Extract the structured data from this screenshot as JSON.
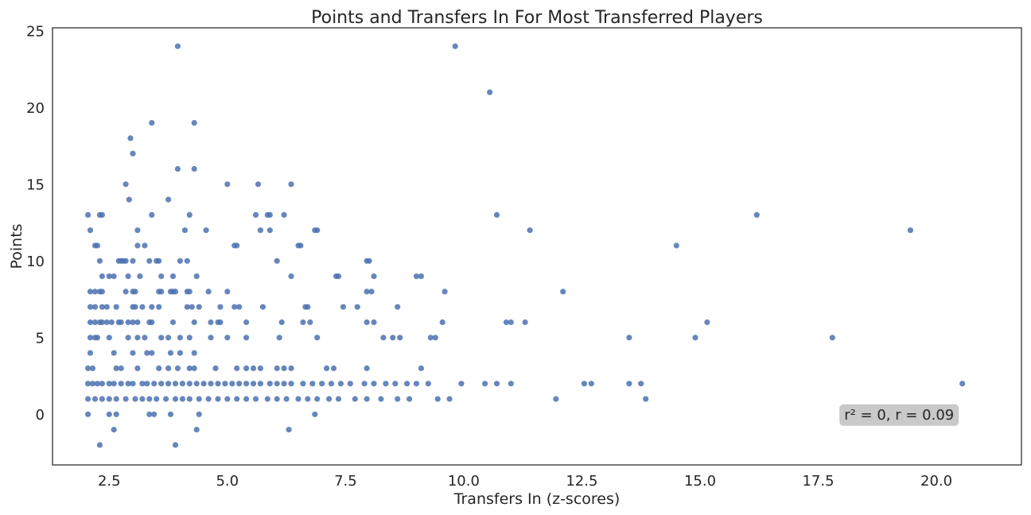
{
  "chart_data": {
    "type": "scatter",
    "title": "Points and Transfers In For Most Transferred Players",
    "xlabel": "Transfers In (z-scores)",
    "ylabel": "Points",
    "xlim": [
      1.3,
      21.8
    ],
    "ylim": [
      -3.3,
      25.2
    ],
    "xticks": [
      "2.5",
      "5.0",
      "7.5",
      "10.0",
      "12.5",
      "15.0",
      "17.5",
      "20.0"
    ],
    "yticks": [
      "0",
      "5",
      "10",
      "15",
      "20",
      "25"
    ],
    "grid": false,
    "point_color": "#4c72b0",
    "annotation": {
      "text": "r² = 0, r = 0.09",
      "x": 18.05,
      "y": 0
    },
    "points": [
      [
        3.95,
        24
      ],
      [
        9.82,
        24
      ],
      [
        10.55,
        21
      ],
      [
        2.95,
        18
      ],
      [
        3.0,
        17
      ],
      [
        3.4,
        19
      ],
      [
        4.3,
        19
      ],
      [
        3.95,
        16
      ],
      [
        4.3,
        16
      ],
      [
        2.85,
        15
      ],
      [
        2.92,
        14
      ],
      [
        3.75,
        14
      ],
      [
        5.0,
        15
      ],
      [
        5.65,
        15
      ],
      [
        6.35,
        15
      ],
      [
        2.05,
        13
      ],
      [
        2.3,
        13
      ],
      [
        2.35,
        13
      ],
      [
        3.4,
        13
      ],
      [
        4.2,
        13
      ],
      [
        5.6,
        13
      ],
      [
        5.85,
        13
      ],
      [
        5.9,
        13
      ],
      [
        6.2,
        13
      ],
      [
        10.7,
        13
      ],
      [
        16.2,
        13
      ],
      [
        2.1,
        12
      ],
      [
        3.1,
        12
      ],
      [
        4.1,
        12
      ],
      [
        4.55,
        12
      ],
      [
        5.7,
        12
      ],
      [
        5.9,
        12
      ],
      [
        6.85,
        12
      ],
      [
        6.9,
        12
      ],
      [
        11.4,
        12
      ],
      [
        19.45,
        12
      ],
      [
        2.2,
        11
      ],
      [
        2.25,
        11
      ],
      [
        3.1,
        11
      ],
      [
        3.25,
        11
      ],
      [
        5.15,
        11
      ],
      [
        5.2,
        11
      ],
      [
        6.5,
        11
      ],
      [
        6.55,
        11
      ],
      [
        14.5,
        11
      ],
      [
        2.3,
        10
      ],
      [
        2.7,
        10
      ],
      [
        2.75,
        10
      ],
      [
        2.8,
        10
      ],
      [
        2.85,
        10
      ],
      [
        3.0,
        10
      ],
      [
        3.35,
        10
      ],
      [
        3.5,
        10
      ],
      [
        3.55,
        10
      ],
      [
        4.0,
        10
      ],
      [
        4.15,
        10
      ],
      [
        6.05,
        10
      ],
      [
        7.95,
        10
      ],
      [
        8.0,
        10
      ],
      [
        2.35,
        9
      ],
      [
        2.5,
        9
      ],
      [
        2.6,
        9
      ],
      [
        2.9,
        9
      ],
      [
        3.15,
        9
      ],
      [
        3.6,
        9
      ],
      [
        3.85,
        9
      ],
      [
        4.35,
        9
      ],
      [
        6.35,
        9
      ],
      [
        7.3,
        9
      ],
      [
        7.35,
        9
      ],
      [
        8.1,
        9
      ],
      [
        9.0,
        9
      ],
      [
        9.1,
        9
      ],
      [
        2.1,
        8
      ],
      [
        2.2,
        8
      ],
      [
        2.3,
        8
      ],
      [
        2.35,
        8
      ],
      [
        2.85,
        8
      ],
      [
        3.0,
        8
      ],
      [
        3.05,
        8
      ],
      [
        3.55,
        8
      ],
      [
        3.6,
        8
      ],
      [
        3.8,
        8
      ],
      [
        3.85,
        8
      ],
      [
        3.9,
        8
      ],
      [
        4.15,
        8
      ],
      [
        4.2,
        8
      ],
      [
        4.6,
        8
      ],
      [
        5.0,
        8
      ],
      [
        7.95,
        8
      ],
      [
        8.05,
        8
      ],
      [
        9.6,
        8
      ],
      [
        12.1,
        8
      ],
      [
        2.1,
        7
      ],
      [
        2.2,
        7
      ],
      [
        2.35,
        7
      ],
      [
        2.45,
        7
      ],
      [
        2.65,
        7
      ],
      [
        3.0,
        7
      ],
      [
        3.05,
        7
      ],
      [
        3.2,
        7
      ],
      [
        3.4,
        7
      ],
      [
        3.55,
        7
      ],
      [
        4.15,
        7
      ],
      [
        4.25,
        7
      ],
      [
        4.4,
        7
      ],
      [
        4.85,
        7
      ],
      [
        5.15,
        7
      ],
      [
        5.25,
        7
      ],
      [
        5.75,
        7
      ],
      [
        6.65,
        7
      ],
      [
        6.7,
        7
      ],
      [
        7.45,
        7
      ],
      [
        7.75,
        7
      ],
      [
        8.6,
        7
      ],
      [
        2.1,
        6
      ],
      [
        2.2,
        6
      ],
      [
        2.3,
        6
      ],
      [
        2.35,
        6
      ],
      [
        2.45,
        6
      ],
      [
        2.55,
        6
      ],
      [
        2.7,
        6
      ],
      [
        2.75,
        6
      ],
      [
        2.9,
        6
      ],
      [
        3.0,
        6
      ],
      [
        3.1,
        6
      ],
      [
        3.35,
        6
      ],
      [
        3.4,
        6
      ],
      [
        3.85,
        6
      ],
      [
        4.3,
        6
      ],
      [
        4.65,
        6
      ],
      [
        4.8,
        6
      ],
      [
        4.85,
        6
      ],
      [
        5.4,
        6
      ],
      [
        6.15,
        6
      ],
      [
        6.6,
        6
      ],
      [
        6.75,
        6
      ],
      [
        7.95,
        6
      ],
      [
        8.1,
        6
      ],
      [
        9.55,
        6
      ],
      [
        10.9,
        6
      ],
      [
        11.0,
        6
      ],
      [
        11.3,
        6
      ],
      [
        15.15,
        6
      ],
      [
        2.1,
        5
      ],
      [
        2.2,
        5
      ],
      [
        2.25,
        5
      ],
      [
        2.5,
        5
      ],
      [
        2.9,
        5
      ],
      [
        3.1,
        5
      ],
      [
        3.25,
        5
      ],
      [
        3.6,
        5
      ],
      [
        3.75,
        5
      ],
      [
        4.0,
        5
      ],
      [
        4.2,
        5
      ],
      [
        4.65,
        5
      ],
      [
        5.0,
        5
      ],
      [
        5.4,
        5
      ],
      [
        6.1,
        5
      ],
      [
        6.9,
        5
      ],
      [
        8.3,
        5
      ],
      [
        8.5,
        5
      ],
      [
        8.65,
        5
      ],
      [
        9.3,
        5
      ],
      [
        9.4,
        5
      ],
      [
        13.5,
        5
      ],
      [
        14.9,
        5
      ],
      [
        17.8,
        5
      ],
      [
        2.1,
        4
      ],
      [
        2.6,
        4
      ],
      [
        3.0,
        4
      ],
      [
        3.3,
        4
      ],
      [
        3.4,
        4
      ],
      [
        3.8,
        4
      ],
      [
        4.0,
        4
      ],
      [
        4.3,
        4
      ],
      [
        2.05,
        3
      ],
      [
        2.15,
        3
      ],
      [
        2.65,
        3
      ],
      [
        2.75,
        3
      ],
      [
        3.1,
        3
      ],
      [
        3.55,
        3
      ],
      [
        3.75,
        3
      ],
      [
        3.95,
        3
      ],
      [
        4.2,
        3
      ],
      [
        4.3,
        3
      ],
      [
        4.75,
        3
      ],
      [
        5.2,
        3
      ],
      [
        5.4,
        3
      ],
      [
        5.55,
        3
      ],
      [
        5.7,
        3
      ],
      [
        6.05,
        3
      ],
      [
        6.2,
        3
      ],
      [
        6.35,
        3
      ],
      [
        7.1,
        3
      ],
      [
        7.25,
        3
      ],
      [
        7.95,
        3
      ],
      [
        9.1,
        3
      ],
      [
        2.05,
        2
      ],
      [
        2.15,
        2
      ],
      [
        2.25,
        2
      ],
      [
        2.35,
        2
      ],
      [
        2.5,
        2
      ],
      [
        2.6,
        2
      ],
      [
        2.75,
        2
      ],
      [
        2.9,
        2
      ],
      [
        3.0,
        2
      ],
      [
        3.2,
        2
      ],
      [
        3.3,
        2
      ],
      [
        3.45,
        2
      ],
      [
        3.6,
        2
      ],
      [
        3.75,
        2
      ],
      [
        3.9,
        2
      ],
      [
        4.05,
        2
      ],
      [
        4.2,
        2
      ],
      [
        4.35,
        2
      ],
      [
        4.5,
        2
      ],
      [
        4.65,
        2
      ],
      [
        4.8,
        2
      ],
      [
        4.95,
        2
      ],
      [
        5.1,
        2
      ],
      [
        5.25,
        2
      ],
      [
        5.4,
        2
      ],
      [
        5.55,
        2
      ],
      [
        5.7,
        2
      ],
      [
        5.9,
        2
      ],
      [
        6.05,
        2
      ],
      [
        6.2,
        2
      ],
      [
        6.35,
        2
      ],
      [
        6.6,
        2
      ],
      [
        6.8,
        2
      ],
      [
        7.0,
        2
      ],
      [
        7.2,
        2
      ],
      [
        7.4,
        2
      ],
      [
        7.6,
        2
      ],
      [
        7.9,
        2
      ],
      [
        8.1,
        2
      ],
      [
        8.35,
        2
      ],
      [
        8.55,
        2
      ],
      [
        8.8,
        2
      ],
      [
        9.0,
        2
      ],
      [
        9.25,
        2
      ],
      [
        9.95,
        2
      ],
      [
        10.45,
        2
      ],
      [
        10.7,
        2
      ],
      [
        11.0,
        2
      ],
      [
        12.55,
        2
      ],
      [
        12.7,
        2
      ],
      [
        13.5,
        2
      ],
      [
        13.75,
        2
      ],
      [
        20.55,
        2
      ],
      [
        2.05,
        1
      ],
      [
        2.2,
        1
      ],
      [
        2.35,
        1
      ],
      [
        2.5,
        1
      ],
      [
        2.65,
        1
      ],
      [
        2.85,
        1
      ],
      [
        3.05,
        1
      ],
      [
        3.2,
        1
      ],
      [
        3.35,
        1
      ],
      [
        3.5,
        1
      ],
      [
        3.7,
        1
      ],
      [
        3.9,
        1
      ],
      [
        4.05,
        1
      ],
      [
        4.2,
        1
      ],
      [
        4.4,
        1
      ],
      [
        4.6,
        1
      ],
      [
        4.8,
        1
      ],
      [
        5.0,
        1
      ],
      [
        5.2,
        1
      ],
      [
        5.4,
        1
      ],
      [
        5.6,
        1
      ],
      [
        5.85,
        1
      ],
      [
        6.05,
        1
      ],
      [
        6.25,
        1
      ],
      [
        6.5,
        1
      ],
      [
        6.7,
        1
      ],
      [
        6.9,
        1
      ],
      [
        7.15,
        1
      ],
      [
        7.35,
        1
      ],
      [
        7.7,
        1
      ],
      [
        7.95,
        1
      ],
      [
        8.25,
        1
      ],
      [
        8.6,
        1
      ],
      [
        8.85,
        1
      ],
      [
        9.45,
        1
      ],
      [
        9.7,
        1
      ],
      [
        11.95,
        1
      ],
      [
        13.85,
        1
      ],
      [
        2.05,
        0
      ],
      [
        2.5,
        0
      ],
      [
        2.65,
        0
      ],
      [
        3.35,
        0
      ],
      [
        3.45,
        0
      ],
      [
        3.8,
        0
      ],
      [
        4.4,
        0
      ],
      [
        6.85,
        0
      ],
      [
        2.6,
        -1
      ],
      [
        4.35,
        -1
      ],
      [
        6.3,
        -1
      ],
      [
        2.3,
        -2
      ],
      [
        3.9,
        -2
      ]
    ]
  }
}
